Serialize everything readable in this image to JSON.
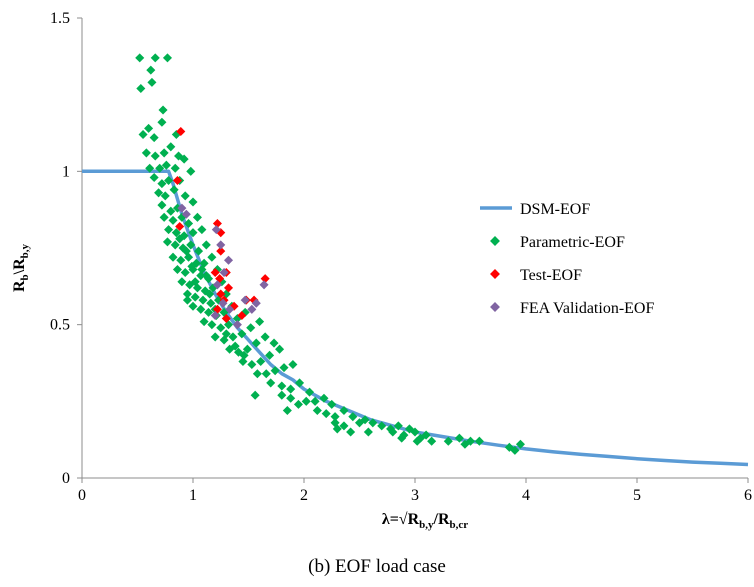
{
  "caption": "(b)   EOF load case",
  "chart_data": {
    "type": "scatter",
    "title": "",
    "xlabel": {
      "main": "λ=√R",
      "sub1": "b,y",
      "mid": "/R",
      "sub2": "b,cr"
    },
    "ylabel": {
      "main1": "R",
      "sub1": "b",
      "mid": "\\R",
      "sub2": "b,y"
    },
    "xlim": [
      0,
      6
    ],
    "ylim": [
      0,
      1.5
    ],
    "x_ticks": [
      0,
      1,
      2,
      3,
      4,
      5,
      6
    ],
    "y_ticks": [
      0,
      0.5,
      1,
      1.5
    ],
    "x_tick_labels": [
      "0",
      "1",
      "2",
      "3",
      "4",
      "5",
      "6"
    ],
    "y_tick_labels": [
      "0",
      "0.5",
      "1",
      "1.5"
    ],
    "grid": false,
    "legend_position": "right",
    "series": [
      {
        "name": "DSM-EOF",
        "kind": "line",
        "color": "#5b9bd5",
        "x": [
          0,
          0.78,
          0.82,
          0.9,
          1.0,
          1.1,
          1.2,
          1.3,
          1.4,
          1.5,
          1.6,
          1.7,
          1.8,
          1.9,
          2.0,
          2.2,
          2.4,
          2.6,
          2.8,
          3.0,
          3.25,
          3.5,
          3.75,
          4.0,
          4.25,
          4.5,
          4.75,
          5.0,
          5.25,
          5.5,
          5.75,
          6.0
        ],
        "y": [
          1.0,
          1.0,
          0.96,
          0.86,
          0.76,
          0.67,
          0.6,
          0.54,
          0.49,
          0.45,
          0.41,
          0.37,
          0.34,
          0.32,
          0.29,
          0.25,
          0.22,
          0.19,
          0.17,
          0.15,
          0.135,
          0.12,
          0.107,
          0.095,
          0.085,
          0.077,
          0.07,
          0.063,
          0.057,
          0.052,
          0.048,
          0.044
        ]
      },
      {
        "name": "Parametric-EOF",
        "kind": "scatter",
        "color": "#00b050",
        "points": [
          [
            0.52,
            1.37
          ],
          [
            0.53,
            1.27
          ],
          [
            0.62,
            1.33
          ],
          [
            0.63,
            1.29
          ],
          [
            0.66,
            1.37
          ],
          [
            0.77,
            1.37
          ],
          [
            0.73,
            1.2
          ],
          [
            0.55,
            1.12
          ],
          [
            0.6,
            1.14
          ],
          [
            0.65,
            1.11
          ],
          [
            0.72,
            1.16
          ],
          [
            0.85,
            1.12
          ],
          [
            0.58,
            1.06
          ],
          [
            0.66,
            1.05
          ],
          [
            0.74,
            1.06
          ],
          [
            0.8,
            1.08
          ],
          [
            0.87,
            1.05
          ],
          [
            0.92,
            1.04
          ],
          [
            0.98,
            1.0
          ],
          [
            0.61,
            1.01
          ],
          [
            0.7,
            1.01
          ],
          [
            0.76,
            1.02
          ],
          [
            0.84,
            1.01
          ],
          [
            0.65,
            0.98
          ],
          [
            0.72,
            0.96
          ],
          [
            0.78,
            0.97
          ],
          [
            0.88,
            0.97
          ],
          [
            0.69,
            0.93
          ],
          [
            0.75,
            0.92
          ],
          [
            0.83,
            0.94
          ],
          [
            0.93,
            0.92
          ],
          [
            1.0,
            0.9
          ],
          [
            0.72,
            0.89
          ],
          [
            0.8,
            0.87
          ],
          [
            0.86,
            0.88
          ],
          [
            0.74,
            0.85
          ],
          [
            0.82,
            0.84
          ],
          [
            0.9,
            0.85
          ],
          [
            0.96,
            0.83
          ],
          [
            1.04,
            0.85
          ],
          [
            0.78,
            0.81
          ],
          [
            0.85,
            0.8
          ],
          [
            0.92,
            0.79
          ],
          [
            1.0,
            0.8
          ],
          [
            1.08,
            0.81
          ],
          [
            0.77,
            0.77
          ],
          [
            0.84,
            0.76
          ],
          [
            0.91,
            0.75
          ],
          [
            0.98,
            0.76
          ],
          [
            1.05,
            0.74
          ],
          [
            1.12,
            0.76
          ],
          [
            0.82,
            0.72
          ],
          [
            0.89,
            0.71
          ],
          [
            0.96,
            0.72
          ],
          [
            1.03,
            0.7
          ],
          [
            1.1,
            0.7
          ],
          [
            1.17,
            0.72
          ],
          [
            0.86,
            0.68
          ],
          [
            0.93,
            0.67
          ],
          [
            1.0,
            0.68
          ],
          [
            1.07,
            0.66
          ],
          [
            1.14,
            0.65
          ],
          [
            1.22,
            0.68
          ],
          [
            0.9,
            0.64
          ],
          [
            0.97,
            0.63
          ],
          [
            1.04,
            0.62
          ],
          [
            1.11,
            0.61
          ],
          [
            1.18,
            0.62
          ],
          [
            1.26,
            0.64
          ],
          [
            0.95,
            0.6
          ],
          [
            1.02,
            0.59
          ],
          [
            1.09,
            0.58
          ],
          [
            1.16,
            0.57
          ],
          [
            1.23,
            0.58
          ],
          [
            1.3,
            0.6
          ],
          [
            1.0,
            0.56
          ],
          [
            1.07,
            0.55
          ],
          [
            1.14,
            0.54
          ],
          [
            1.21,
            0.53
          ],
          [
            1.28,
            0.54
          ],
          [
            1.35,
            0.56
          ],
          [
            1.1,
            0.51
          ],
          [
            1.17,
            0.5
          ],
          [
            1.25,
            0.49
          ],
          [
            1.32,
            0.5
          ],
          [
            1.4,
            0.52
          ],
          [
            1.47,
            0.54
          ],
          [
            1.2,
            0.46
          ],
          [
            1.28,
            0.45
          ],
          [
            1.36,
            0.46
          ],
          [
            1.44,
            0.47
          ],
          [
            1.52,
            0.49
          ],
          [
            1.6,
            0.51
          ],
          [
            1.33,
            0.42
          ],
          [
            1.41,
            0.41
          ],
          [
            1.49,
            0.42
          ],
          [
            1.57,
            0.44
          ],
          [
            1.65,
            0.46
          ],
          [
            1.73,
            0.44
          ],
          [
            1.45,
            0.38
          ],
          [
            1.53,
            0.37
          ],
          [
            1.61,
            0.38
          ],
          [
            1.69,
            0.4
          ],
          [
            1.78,
            0.42
          ],
          [
            1.58,
            0.34
          ],
          [
            1.66,
            0.34
          ],
          [
            1.74,
            0.35
          ],
          [
            1.82,
            0.36
          ],
          [
            1.9,
            0.37
          ],
          [
            1.56,
            0.27
          ],
          [
            1.7,
            0.31
          ],
          [
            1.8,
            0.3
          ],
          [
            1.88,
            0.29
          ],
          [
            1.96,
            0.31
          ],
          [
            2.05,
            0.28
          ],
          [
            1.8,
            0.27
          ],
          [
            1.88,
            0.26
          ],
          [
            1.95,
            0.24
          ],
          [
            1.85,
            0.22
          ],
          [
            2.02,
            0.25
          ],
          [
            2.1,
            0.25
          ],
          [
            2.18,
            0.26
          ],
          [
            2.25,
            0.24
          ],
          [
            2.12,
            0.22
          ],
          [
            2.2,
            0.21
          ],
          [
            2.28,
            0.2
          ],
          [
            2.36,
            0.22
          ],
          [
            2.28,
            0.18
          ],
          [
            2.36,
            0.17
          ],
          [
            2.44,
            0.2
          ],
          [
            2.5,
            0.18
          ],
          [
            2.3,
            0.16
          ],
          [
            2.42,
            0.15
          ],
          [
            2.55,
            0.19
          ],
          [
            2.62,
            0.18
          ],
          [
            2.7,
            0.17
          ],
          [
            2.78,
            0.16
          ],
          [
            2.58,
            0.15
          ],
          [
            2.8,
            0.15
          ],
          [
            2.85,
            0.17
          ],
          [
            2.9,
            0.14
          ],
          [
            2.95,
            0.16
          ],
          [
            3.0,
            0.15
          ],
          [
            3.05,
            0.13
          ],
          [
            3.1,
            0.14
          ],
          [
            3.15,
            0.12
          ],
          [
            2.88,
            0.13
          ],
          [
            3.02,
            0.12
          ],
          [
            3.3,
            0.12
          ],
          [
            3.4,
            0.13
          ],
          [
            3.45,
            0.11
          ],
          [
            3.5,
            0.12
          ],
          [
            3.58,
            0.12
          ],
          [
            3.85,
            0.1
          ],
          [
            3.9,
            0.09
          ],
          [
            3.95,
            0.11
          ],
          [
            0.95,
            0.58
          ],
          [
            1.02,
            0.64
          ],
          [
            1.08,
            0.68
          ],
          [
            1.15,
            0.6
          ],
          [
            0.99,
            0.69
          ],
          [
            1.12,
            0.66
          ],
          [
            1.2,
            0.55
          ],
          [
            1.38,
            0.43
          ],
          [
            1.46,
            0.4
          ],
          [
            1.3,
            0.47
          ],
          [
            0.94,
            0.74
          ],
          [
            0.88,
            0.78
          ]
        ]
      },
      {
        "name": "Test-EOF",
        "kind": "scatter",
        "color": "#ff0000",
        "points": [
          [
            0.89,
            1.13
          ],
          [
            0.86,
            0.97
          ],
          [
            0.88,
            0.82
          ],
          [
            1.22,
            0.83
          ],
          [
            1.25,
            0.8
          ],
          [
            1.25,
            0.74
          ],
          [
            1.3,
            0.67
          ],
          [
            1.2,
            0.67
          ],
          [
            1.24,
            0.65
          ],
          [
            1.25,
            0.6
          ],
          [
            1.28,
            0.58
          ],
          [
            1.32,
            0.62
          ],
          [
            1.22,
            0.55
          ],
          [
            1.3,
            0.52
          ],
          [
            1.48,
            0.58
          ],
          [
            1.55,
            0.58
          ],
          [
            1.65,
            0.65
          ],
          [
            1.37,
            0.56
          ],
          [
            1.44,
            0.53
          ]
        ]
      },
      {
        "name": "FEA Validation-EOF",
        "kind": "scatter",
        "color": "#8064a2",
        "points": [
          [
            0.9,
            0.88
          ],
          [
            0.94,
            0.86
          ],
          [
            1.21,
            0.81
          ],
          [
            1.25,
            0.76
          ],
          [
            1.28,
            0.67
          ],
          [
            1.32,
            0.71
          ],
          [
            1.22,
            0.63
          ],
          [
            1.27,
            0.57
          ],
          [
            1.2,
            0.53
          ],
          [
            1.33,
            0.55
          ],
          [
            1.4,
            0.5
          ],
          [
            1.47,
            0.58
          ],
          [
            1.53,
            0.55
          ],
          [
            1.57,
            0.57
          ],
          [
            1.64,
            0.63
          ]
        ]
      }
    ]
  }
}
